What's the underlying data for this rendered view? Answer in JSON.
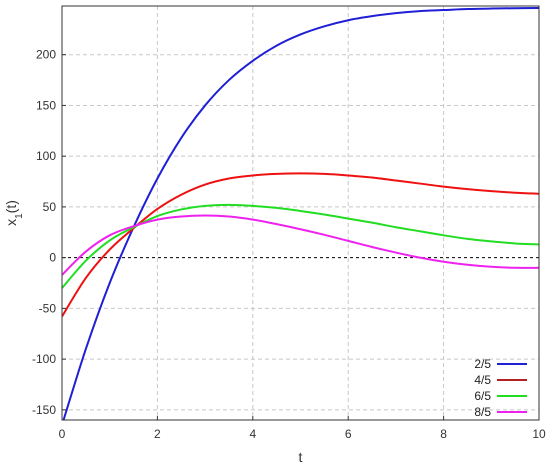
{
  "chart_data": {
    "type": "line",
    "title": "",
    "xlabel": "t",
    "ylabel": "x",
    "ylabel_sub": "1",
    "ylabel_suffix": "(t)",
    "xlim": [
      0,
      10
    ],
    "ylim": [
      -160,
      248
    ],
    "xticks": [
      0,
      2,
      4,
      6,
      8,
      10
    ],
    "yticks": [
      -150,
      -100,
      -50,
      0,
      50,
      100,
      150,
      200
    ],
    "xtick_labels": [
      "0",
      "2",
      "4",
      "6",
      "8",
      "10"
    ],
    "ytick_labels": [
      "-150",
      "-100",
      "-50",
      "0",
      "50",
      "100",
      "150",
      "200"
    ],
    "grid": true,
    "zero_line": true,
    "legend_position": "bottom-right",
    "x": [
      0,
      0.5,
      1,
      1.5,
      2,
      2.5,
      3,
      3.5,
      4,
      4.5,
      5,
      5.5,
      6,
      6.5,
      7,
      7.5,
      8,
      8.5,
      9,
      9.5,
      10
    ],
    "series": [
      {
        "name": "2/5",
        "color": "#1f1fd6",
        "values": [
          -165,
          -90,
          -25,
          30,
          78,
          118,
          150,
          175,
          194,
          209,
          220,
          228,
          234,
          238,
          241,
          243,
          244,
          245,
          245.5,
          245.8,
          246
        ]
      },
      {
        "name": "4/5",
        "color": "#ee1111",
        "values": [
          -58,
          -20,
          8,
          29,
          48,
          62,
          72,
          78,
          81,
          82.5,
          83,
          82.5,
          81,
          79,
          76,
          73,
          70,
          67.5,
          65.5,
          64,
          63
        ]
      },
      {
        "name": "6/5",
        "color": "#22dd22",
        "values": [
          -30,
          -3,
          17,
          30,
          41,
          47.5,
          51,
          52,
          51,
          49,
          46,
          42.5,
          38.5,
          34.5,
          30,
          26,
          22,
          18.5,
          16,
          14,
          13
        ]
      },
      {
        "name": "8/5",
        "color": "#ee22ee",
        "values": [
          -17,
          6,
          22,
          31,
          37.5,
          40.5,
          41.5,
          40.5,
          37.5,
          33,
          28,
          22.5,
          16.5,
          10.5,
          5,
          0,
          -4,
          -7,
          -9,
          -10,
          -10
        ]
      }
    ],
    "legend_line_colors": {
      "2/5": "#1f1fd6",
      "4/5": "#b22222",
      "6/5": "#22dd22",
      "8/5": "#ee22ee"
    }
  }
}
